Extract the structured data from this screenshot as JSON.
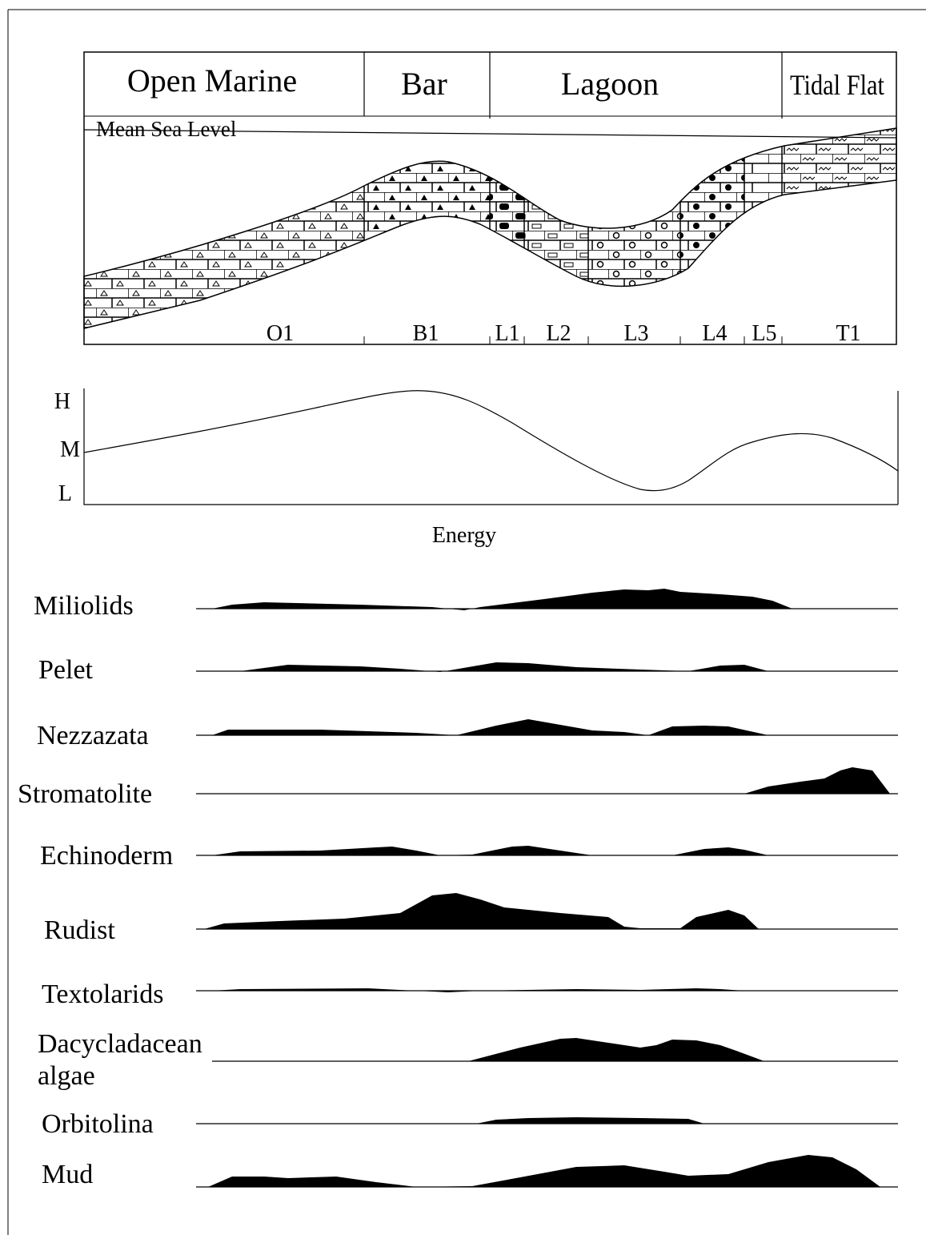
{
  "header": {
    "zones": [
      "Open Marine",
      "Bar",
      "Lagoon",
      "Tidal Flat"
    ],
    "sea_level": "Mean Sea Level"
  },
  "facies": [
    "O1",
    "B1",
    "L1",
    "L2",
    "L3",
    "L4",
    "L5",
    "T1"
  ],
  "energy": {
    "levels": [
      "H",
      "M",
      "L"
    ],
    "label": "Energy"
  },
  "organisms": [
    "Miliolids",
    "Pelet",
    "Nezzazata",
    "Stromatolite",
    "Echinoderm",
    "Rudist",
    "Textolarids",
    "Dacycladacean algae",
    "Orbitolina",
    "Mud"
  ]
}
